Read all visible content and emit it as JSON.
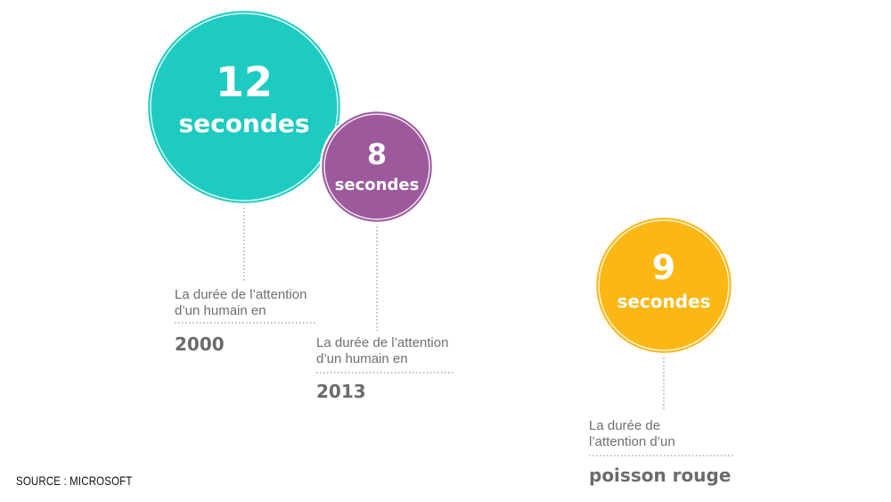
{
  "chart_data": {
    "type": "bubble",
    "unit_label": "secondes",
    "series": [
      {
        "value": 12,
        "description_lines": [
          "La durée de l’attention",
          "d’un humain en"
        ],
        "subject": "2000",
        "color": "#1ecbc0"
      },
      {
        "value": 8,
        "description_lines": [
          "La durée de l’attention",
          "d’un humain en"
        ],
        "subject": "2013",
        "color": "#9c5a9c"
      },
      {
        "value": 9,
        "description_lines": [
          "La durée de",
          "l’attention d’un"
        ],
        "subject": "poisson rouge",
        "color": "#fbb714"
      }
    ]
  },
  "source": "SOURCE : MICROSOFT"
}
